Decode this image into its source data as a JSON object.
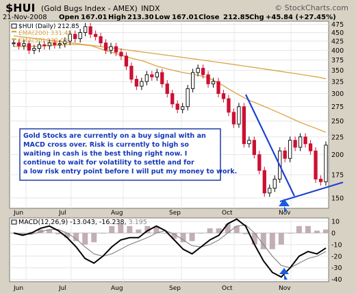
{
  "header": {
    "symbol": "$HUI",
    "name": "(Gold Bugs Index - AMEX)",
    "exchange": "INDX",
    "watermark": "© StockCharts.com",
    "date": "21-Nov-2008",
    "open_label": "Open",
    "open": "167.01",
    "high_label": "High",
    "high": "213.30",
    "low_label": "Low",
    "low": "167.01",
    "close_label": "Close",
    "close": "212.85",
    "chg_label": "Chg",
    "chg": "+45.84 (+27.45%)"
  },
  "legend": [
    {
      "label": "$HUI (Daily) 212.85",
      "color": "#000000"
    },
    {
      "label": "EMA(200) 331.45",
      "color": "#d9a440"
    },
    {
      "label": "EMA(50) 232.01",
      "color": "#d9a440"
    }
  ],
  "annotation": "Gold Stocks are currently on a buy signal with an MACD cross over. Risk is currently to high so waiting in cash is the best thing right now. I continue to wait for volatility to settle and for a low risk entry point before I will put my money to work.",
  "macd_label": {
    "title": "MACD(12,26,9)",
    "macd": "-13.043",
    "signal": "-16.238",
    "hist": "3.195"
  },
  "colors": {
    "up": "#000000",
    "down": "#cc1133",
    "ema": "#d9a440",
    "trendline": "#1a3fd6",
    "arrow": "#1a5ce0",
    "hist": "#b9a0a8",
    "background": "#d8d2c4",
    "panel": "#ffffff"
  },
  "chart_data": [
    {
      "type": "line",
      "title": "$HUI (Daily)",
      "x_ticks": [
        "Jun",
        "Jul",
        "Aug",
        "Sep",
        "Oct",
        "Nov"
      ],
      "y_ticks": [
        150,
        175,
        200,
        225,
        250,
        275,
        300,
        325,
        350,
        375,
        400,
        425,
        450,
        475
      ],
      "ylim": [
        140,
        485
      ],
      "log_scale": true,
      "series": [
        {
          "name": "$HUI (Daily)",
          "close": [
            420,
            412,
            418,
            400,
            405,
            415,
            412,
            420,
            415,
            418,
            425,
            445,
            432,
            450,
            468,
            445,
            438,
            420,
            400,
            410,
            395,
            385,
            360,
            330,
            315,
            325,
            340,
            335,
            345,
            320,
            300,
            280,
            270,
            275,
            310,
            345,
            355,
            340,
            320,
            325,
            300,
            290,
            265,
            245,
            275,
            215,
            220,
            200,
            180,
            155,
            160,
            170,
            205,
            195,
            220,
            210,
            225,
            215,
            205,
            170,
            167,
            213
          ]
        },
        {
          "name": "EMA(200)",
          "values": [
            440,
            437,
            434,
            431,
            428,
            425,
            422,
            419,
            416,
            413,
            410,
            407,
            404,
            401,
            398,
            395,
            392,
            389,
            386,
            383,
            380,
            377,
            374,
            371,
            368,
            365,
            362,
            359,
            356,
            353,
            350,
            347,
            344,
            341,
            338,
            335,
            331
          ]
        },
        {
          "name": "EMA(50)",
          "values": [
            410,
            410,
            411,
            413,
            415,
            416,
            412,
            400,
            390,
            380,
            372,
            360,
            352,
            345,
            340,
            333,
            318,
            302,
            288,
            278,
            268,
            258,
            248,
            240,
            232
          ]
        }
      ]
    },
    {
      "type": "line",
      "title": "MACD(12,26,9)",
      "x_ticks": [
        "Jun",
        "Jul",
        "Aug",
        "Sep",
        "Oct",
        "Nov"
      ],
      "y_ticks": [
        10,
        0,
        -10,
        -20,
        -30,
        -40
      ],
      "ylim": [
        -42,
        13
      ],
      "series": [
        {
          "name": "MACD",
          "values": [
            0,
            -2,
            0,
            4,
            6,
            2,
            -4,
            -12,
            -22,
            -26,
            -20,
            -12,
            -6,
            -4,
            -4,
            2,
            6,
            2,
            -6,
            -14,
            -18,
            -12,
            -6,
            -2,
            8,
            12,
            6,
            -10,
            -24,
            -34,
            -38,
            -30,
            -20,
            -16,
            -18,
            -13
          ]
        },
        {
          "name": "Signal",
          "values": [
            0,
            -1,
            -1,
            1,
            3,
            3,
            0,
            -5,
            -12,
            -18,
            -20,
            -18,
            -14,
            -10,
            -7,
            -4,
            0,
            2,
            -1,
            -6,
            -11,
            -12,
            -10,
            -6,
            0,
            6,
            7,
            0,
            -10,
            -20,
            -28,
            -30,
            -26,
            -22,
            -20,
            -16
          ]
        },
        {
          "name": "Histogram",
          "values": [
            0,
            -1,
            1,
            3,
            3,
            -1,
            -4,
            -7,
            -10,
            -8,
            0,
            6,
            8,
            6,
            3,
            6,
            6,
            0,
            -5,
            -8,
            -7,
            0,
            4,
            4,
            8,
            6,
            -1,
            -10,
            -14,
            -14,
            -10,
            0,
            6,
            6,
            2,
            3
          ]
        }
      ]
    }
  ]
}
